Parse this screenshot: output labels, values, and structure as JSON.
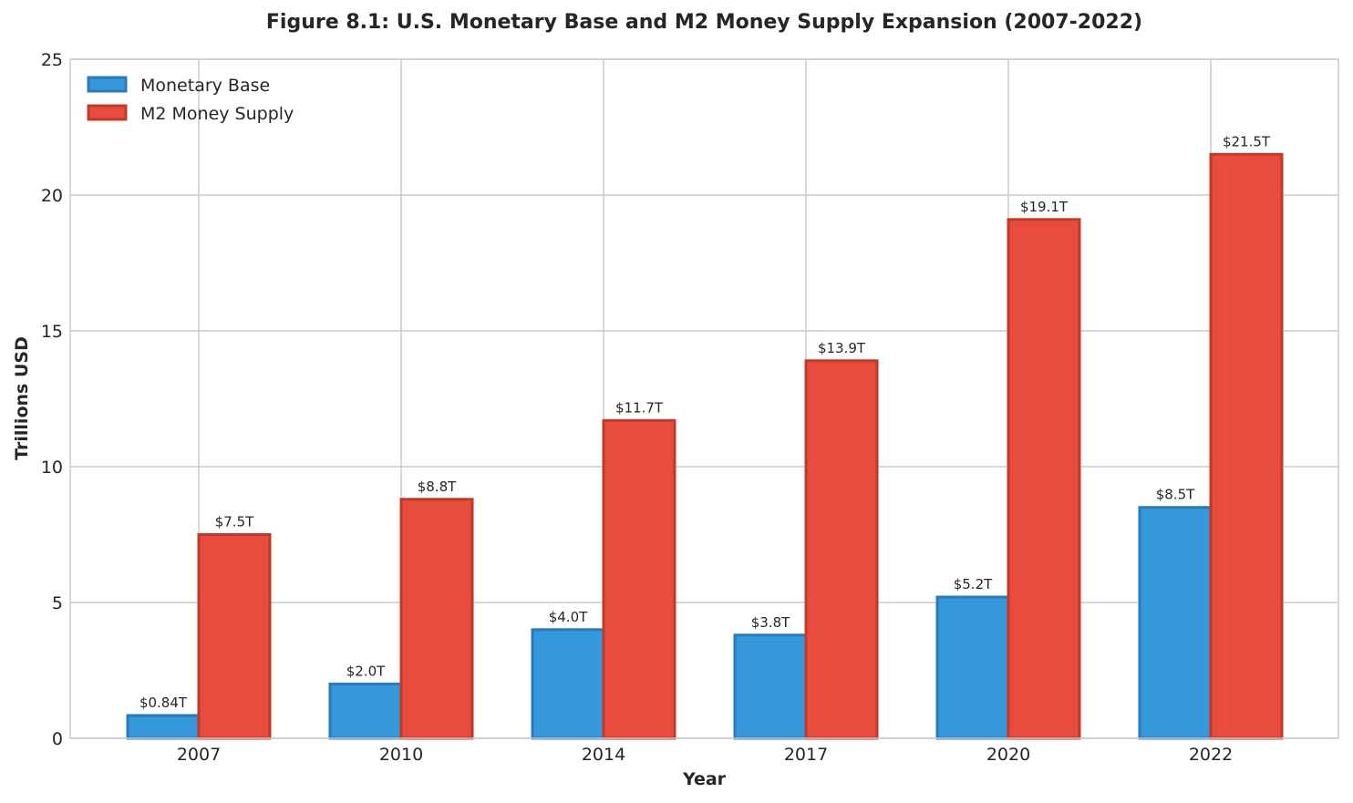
{
  "chart_data": {
    "type": "bar",
    "title": "Figure 8.1: U.S. Monetary Base and M2 Money Supply Expansion (2007-2022)",
    "xlabel": "Year",
    "ylabel": "Trillions USD",
    "categories": [
      "2007",
      "2010",
      "2014",
      "2017",
      "2020",
      "2022"
    ],
    "ylim": [
      0,
      25
    ],
    "yticks": [
      0,
      5,
      10,
      15,
      20,
      25
    ],
    "grid": true,
    "legend": "top-left",
    "series": [
      {
        "name": "Monetary Base",
        "values": [
          0.84,
          2.0,
          4.0,
          3.8,
          5.2,
          8.5
        ],
        "labels": [
          "$0.84T",
          "$2.0T",
          "$4.0T",
          "$3.8T",
          "$5.2T",
          "$8.5T"
        ],
        "color": "#3498db",
        "edge": "#2a7ab8"
      },
      {
        "name": "M2 Money Supply",
        "values": [
          7.5,
          8.8,
          11.7,
          13.9,
          19.1,
          21.5
        ],
        "labels": [
          "$7.5T",
          "$8.8T",
          "$11.7T",
          "$13.9T",
          "$19.1T",
          "$21.5T"
        ],
        "color": "#e74c3c",
        "edge": "#c0392b"
      }
    ]
  }
}
